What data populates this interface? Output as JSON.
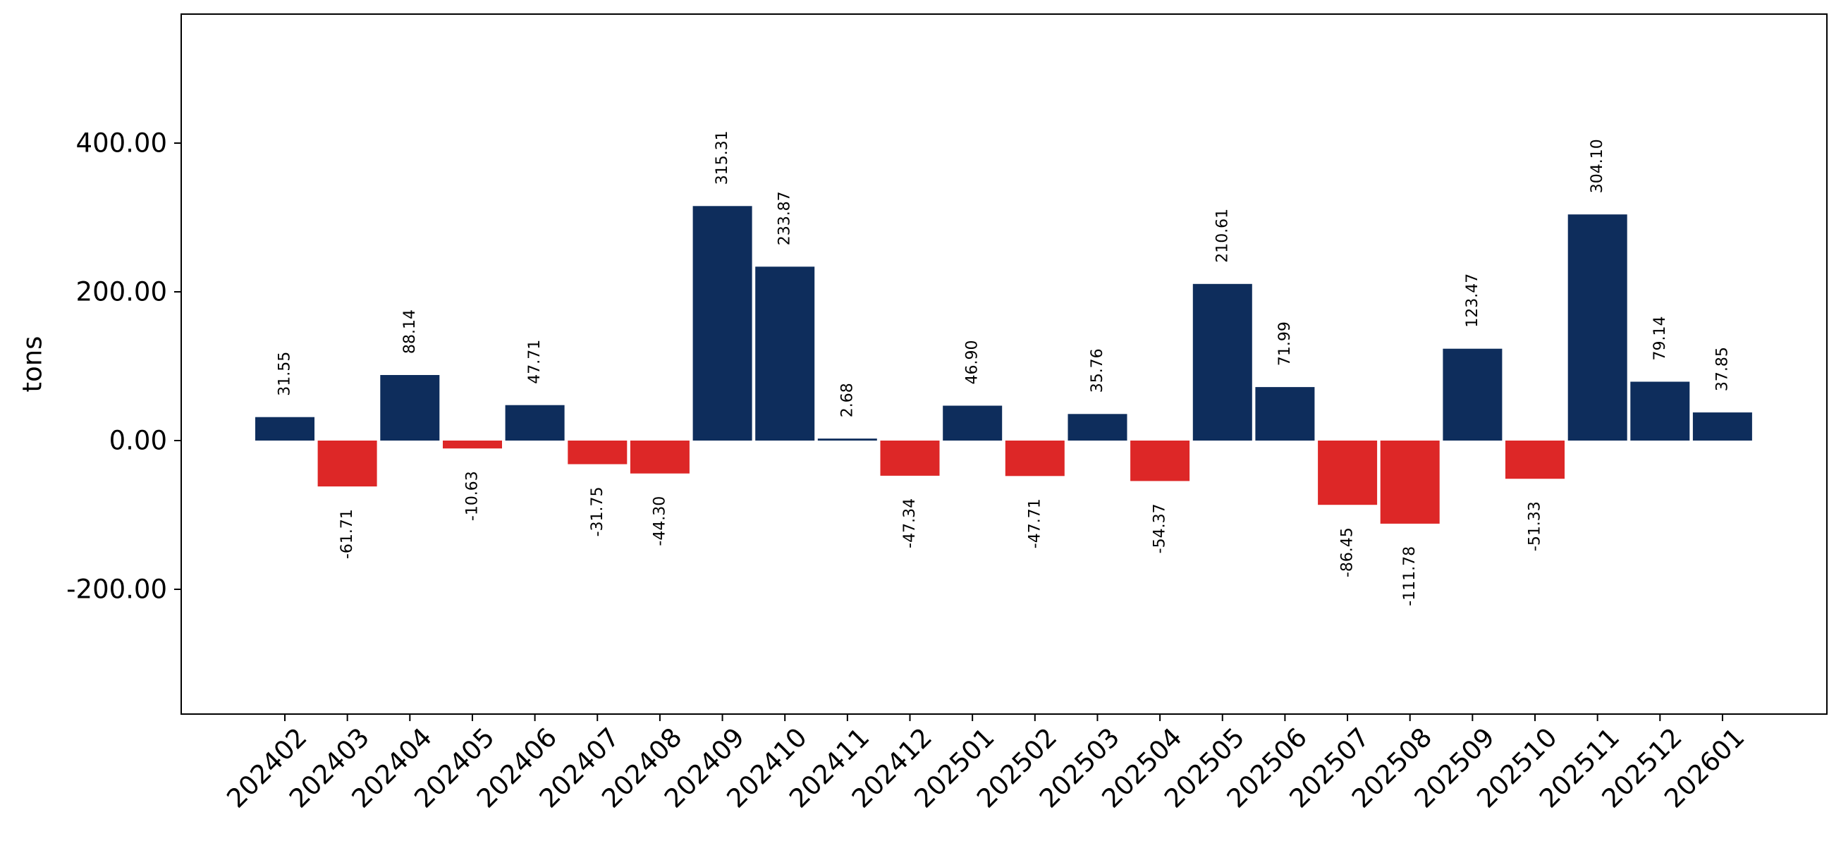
{
  "chart_data": {
    "type": "bar",
    "title": "",
    "xlabel": "",
    "ylabel": "tons",
    "ylim": [
      -367,
      570
    ],
    "yticks": [
      -200,
      0,
      200,
      400
    ],
    "ytick_labels": [
      "-200.00",
      "0.00",
      "200.00",
      "400.00"
    ],
    "grid": false,
    "colors": {
      "positive": "#0e2d5c",
      "negative": "#dd2727"
    },
    "categories": [
      "202402",
      "202403",
      "202404",
      "202405",
      "202406",
      "202407",
      "202408",
      "202409",
      "202410",
      "202411",
      "202412",
      "202501",
      "202502",
      "202503",
      "202504",
      "202505",
      "202506",
      "202507",
      "202508",
      "202509",
      "202510",
      "202511",
      "202512",
      "202601"
    ],
    "values": [
      31.55,
      -61.71,
      88.14,
      -10.63,
      47.71,
      -31.75,
      -44.3,
      315.31,
      233.87,
      2.68,
      -47.34,
      46.9,
      -47.71,
      35.76,
      -54.37,
      210.61,
      71.99,
      -86.45,
      -111.78,
      123.47,
      -51.33,
      304.1,
      79.14,
      37.85
    ],
    "value_labels": [
      "31.55",
      "-61.71",
      "88.14",
      "-10.63",
      "47.71",
      "-31.75",
      "-44.30",
      "315.31",
      "233.87",
      "2.68",
      "-47.34",
      "46.90",
      "-47.71",
      "35.76",
      "-54.37",
      "210.61",
      "71.99",
      "-86.45",
      "-111.78",
      "123.47",
      "-51.33",
      "304.10",
      "79.14",
      "37.85"
    ]
  }
}
